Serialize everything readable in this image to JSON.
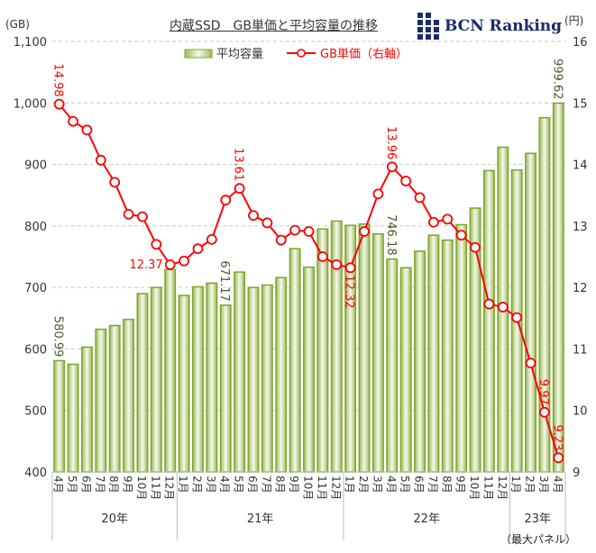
{
  "header": {
    "title": "内蔵SSD　GB単価と平均容量の推移",
    "logo_text": "BCN Ranking",
    "left_unit": "(GB)",
    "right_unit": "(円)",
    "footnote": "（最大パネル）"
  },
  "colors": {
    "bar": "#7ea52a",
    "line": "#ff0000"
  },
  "chart_data": {
    "type": "bar+line",
    "title": "内蔵SSD　GB単価と平均容量の推移",
    "categories": [
      "4月",
      "5月",
      "6月",
      "7月",
      "8月",
      "9月",
      "10月",
      "11月",
      "12月",
      "1月",
      "2月",
      "3月",
      "4月",
      "5月",
      "6月",
      "7月",
      "8月",
      "9月",
      "10月",
      "11月",
      "12月",
      "1月",
      "2月",
      "3月",
      "4月",
      "5月",
      "6月",
      "7月",
      "8月",
      "9月",
      "10月",
      "11月",
      "12月",
      "1月",
      "2月",
      "3月",
      "4月"
    ],
    "year_groups": [
      {
        "label": "20年",
        "count": 9
      },
      {
        "label": "21年",
        "count": 12
      },
      {
        "label": "22年",
        "count": 12
      },
      {
        "label": "23年",
        "count": 4
      }
    ],
    "series": [
      {
        "name": "平均容量",
        "axis": "left",
        "type": "bar",
        "values": [
          580.99,
          575,
          603,
          632,
          638,
          648,
          690,
          700,
          729,
          687,
          701,
          707,
          671.17,
          725,
          700,
          704,
          716,
          763,
          733,
          795,
          808,
          801,
          803,
          787,
          746.18,
          732,
          759,
          785,
          777,
          802,
          829,
          890,
          928,
          891,
          918,
          976,
          999.62
        ]
      },
      {
        "name": "GB単価（右軸）",
        "axis": "right",
        "type": "line",
        "values": [
          14.98,
          14.7,
          14.56,
          14.07,
          13.71,
          13.19,
          13.15,
          12.7,
          12.37,
          12.43,
          12.63,
          12.78,
          13.42,
          13.61,
          13.17,
          13.05,
          12.77,
          12.93,
          12.91,
          12.5,
          12.37,
          12.32,
          12.91,
          13.52,
          13.96,
          13.73,
          13.46,
          13.06,
          13.11,
          12.85,
          12.65,
          11.73,
          11.68,
          11.51,
          10.77,
          9.97,
          9.23
        ]
      }
    ],
    "bar_labels": {
      "0": "580.99",
      "12": "671.17",
      "24": "746.18",
      "36": "999.62"
    },
    "line_labels": {
      "0": "14.98",
      "8": "12.37",
      "13": "13.61",
      "21": "12.32",
      "24": "13.96",
      "35": "9.97",
      "36": "9.23"
    },
    "ylim_left": [
      400,
      1100
    ],
    "yticks_left": [
      "400",
      "500",
      "600",
      "700",
      "800",
      "900",
      "1,000",
      "1,100"
    ],
    "ylim_right": [
      9,
      16
    ],
    "yticks_right": [
      "9",
      "10",
      "11",
      "12",
      "13",
      "14",
      "15",
      "16"
    ],
    "grid": true,
    "legend": "top-center"
  }
}
